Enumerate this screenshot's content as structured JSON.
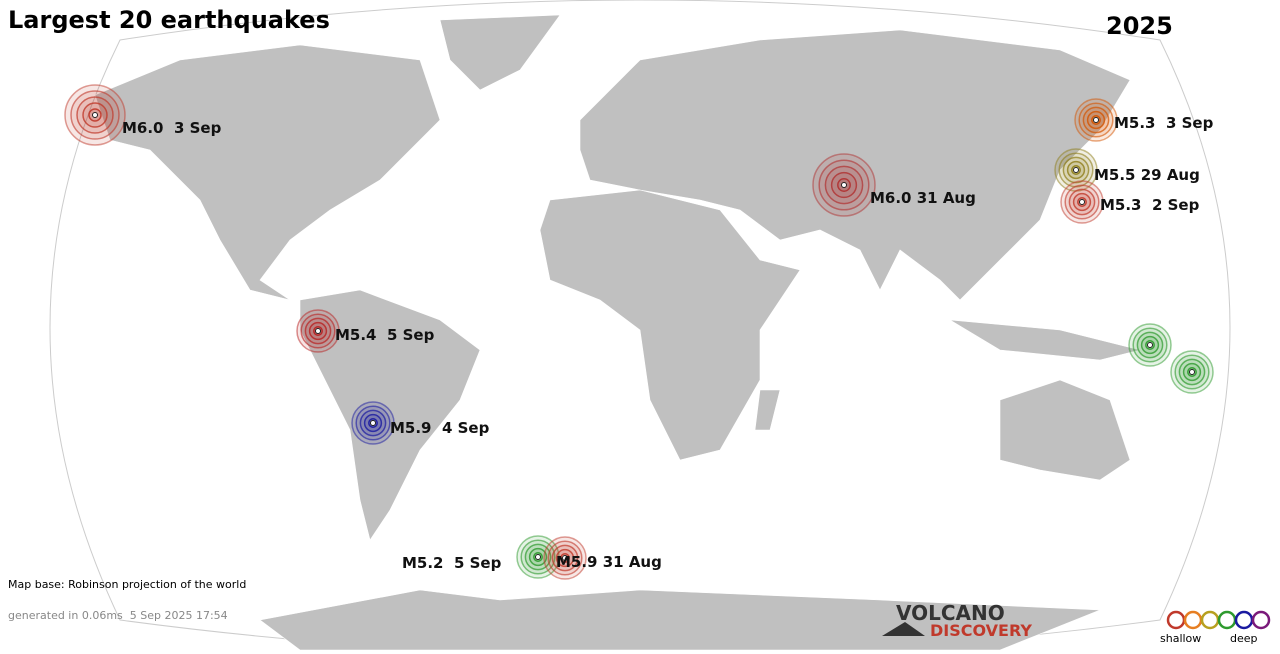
{
  "header": {
    "title": "Largest 20 earthquakes",
    "year": "2025"
  },
  "quakes": [
    {
      "label": "M6.0  3 Sep",
      "color": "#c0392b"
    },
    {
      "label": "M5.3  3 Sep",
      "color": "#d35400"
    },
    {
      "label": "M5.5 29 Aug",
      "color": "#8e7d1a"
    },
    {
      "label": "M5.3  2 Sep",
      "color": "#c0392b"
    },
    {
      "label": "M6.0 31 Aug",
      "color": "#b03030"
    },
    {
      "label": "M5.4  5 Sep",
      "color": "#b82020"
    },
    {
      "label": "M5.9  4 Sep",
      "color": "#1a1aa0"
    },
    {
      "label": "M5.2  5 Sep",
      "color": "#2e9a2e"
    },
    {
      "label": "M5.9 31 Aug",
      "color": "#c0392b"
    },
    {
      "label": null,
      "color": "#2e9a2e"
    },
    {
      "label": null,
      "color": "#2e9a2e"
    }
  ],
  "footer": {
    "map_base": "Map base: Robinson projection of the world",
    "generated": "generated in 0.06ms  5 Sep 2025 17:54"
  },
  "logo": {
    "line1": "VOLCANO",
    "line2": "DISCOVERY"
  },
  "legend": {
    "shallow": "shallow",
    "deep": "deep"
  }
}
